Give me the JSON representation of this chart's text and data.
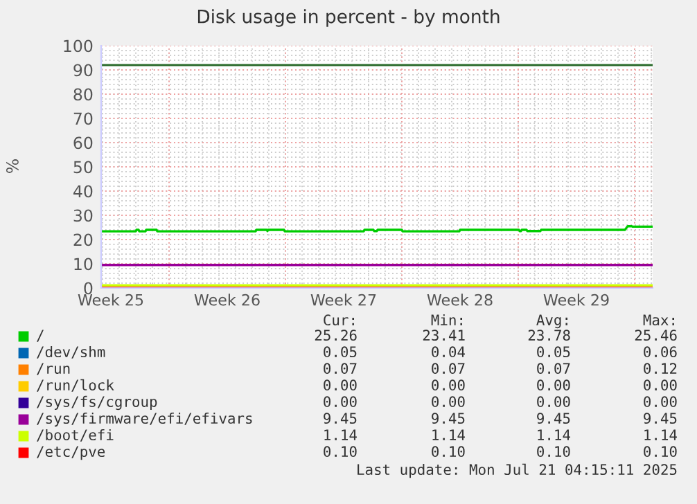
{
  "chart_data": {
    "type": "line",
    "title": "Disk usage in percent - by month",
    "ylabel": "%",
    "xlim": [
      "2025-06-18T22:00",
      "2025-07-22T02:00"
    ],
    "ylim": [
      0,
      100
    ],
    "xticks": [
      {
        "value": "2025-06-19T12:00",
        "label": "Week 25"
      },
      {
        "value": "2025-06-23",
        "label": null
      },
      {
        "value": "2025-06-26T12:00",
        "label": "Week 26"
      },
      {
        "value": "2025-06-30",
        "label": null
      },
      {
        "value": "2025-07-03T12:00",
        "label": "Week 27"
      },
      {
        "value": "2025-07-07",
        "label": null
      },
      {
        "value": "2025-07-10T12:00",
        "label": "Week 28"
      },
      {
        "value": "2025-07-14",
        "label": null
      },
      {
        "value": "2025-07-17T12:00",
        "label": "Week 29"
      },
      {
        "value": "2025-07-21",
        "label": null
      }
    ],
    "yticks": [
      0,
      10,
      20,
      30,
      40,
      50,
      60,
      70,
      80,
      90,
      100
    ],
    "grid": true,
    "legend": "bottom",
    "ref_lines": [
      {
        "axis": "y",
        "value": 92,
        "color": "#2a6a2a"
      }
    ],
    "series": [
      {
        "name": "/",
        "color": "#00cc00",
        "x": [
          "2025-06-18T22:00",
          "2025-06-21T00:00",
          "2025-06-21T01:00",
          "2025-06-21T04:00",
          "2025-06-21T05:00",
          "2025-06-21T14:00",
          "2025-06-21T15:00",
          "2025-06-22T06:00",
          "2025-06-22T07:00",
          "2025-06-28T05:00",
          "2025-06-28T06:00",
          "2025-06-28T21:00",
          "2025-06-28T22:00",
          "2025-06-28T23:00",
          "2025-06-29T22:00",
          "2025-06-29T23:00",
          "2025-07-04T17:00",
          "2025-07-04T18:00",
          "2025-07-05T07:00",
          "2025-07-05T08:00",
          "2025-07-05T12:00",
          "2025-07-05T13:00",
          "2025-07-07T00:00",
          "2025-07-07T01:00",
          "2025-07-10T11:00",
          "2025-07-10T12:00",
          "2025-07-14T01:00",
          "2025-07-14T02:00",
          "2025-07-14T04:00",
          "2025-07-14T05:00",
          "2025-07-14T12:00",
          "2025-07-14T13:00",
          "2025-07-15T08:00",
          "2025-07-15T09:00",
          "2025-07-20T10:00",
          "2025-07-20T14:00",
          "2025-07-20T20:00",
          "2025-07-20T21:00",
          "2025-07-22T02:00"
        ],
        "values": [
          23.4,
          23.4,
          24,
          24,
          23.4,
          23.4,
          24,
          24,
          23.4,
          23.4,
          24,
          24,
          23.5,
          24,
          24,
          23.4,
          23.4,
          24,
          24,
          23.5,
          23.5,
          24,
          24,
          23.4,
          23.4,
          24,
          24,
          23.5,
          23.5,
          24,
          24,
          23.5,
          23.5,
          24,
          24,
          25.5,
          25.5,
          25.3,
          25.3
        ]
      },
      {
        "name": "/dev/shm",
        "color": "#0066b3",
        "values": [
          null,
          null
        ]
      },
      {
        "name": "/run",
        "color": "#ff8000",
        "values": [
          null,
          null
        ]
      },
      {
        "name": "/run/lock",
        "color": "#ffcc00",
        "values": [
          null,
          null
        ]
      },
      {
        "name": "/sys/fs/cgroup",
        "color": "#330099",
        "values": [
          null,
          null
        ]
      },
      {
        "name": "/sys/firmware/efi/efivars",
        "color": "#990099",
        "x": [
          "2025-06-18T22:00",
          "2025-07-22T02:00"
        ],
        "values": [
          9.5,
          9.5
        ]
      },
      {
        "name": "/boot/efi",
        "color": "#ccff00",
        "x": [
          "2025-06-18T22:00",
          "2025-07-22T02:00"
        ],
        "values": [
          1.1,
          1.1
        ]
      },
      {
        "name": "/etc/pve",
        "color": "#ff0000",
        "x": [
          "2025-06-18T22:00",
          "2025-07-22T02:00"
        ],
        "values": [
          0.1,
          0.1
        ]
      }
    ],
    "annotations": [
      "Cur:",
      "Min:",
      "Avg:",
      "Max:",
      "25.26",
      "23.41",
      "23.78",
      "25.46",
      "0.05",
      "0.04",
      "0.05",
      "0.06",
      "0.07",
      "0.07",
      "0.07",
      "0.12",
      "0.00",
      "0.00",
      "0.00",
      "0.00",
      "0.00",
      "0.00",
      "0.00",
      "0.00",
      "9.45",
      "9.45",
      "9.45",
      "9.45",
      "1.14",
      "1.14",
      "1.14",
      "1.14",
      "0.10",
      "0.10",
      "0.10",
      "0.10",
      "Last update: Mon Jul 21 04:15:11 2025"
    ]
  }
}
